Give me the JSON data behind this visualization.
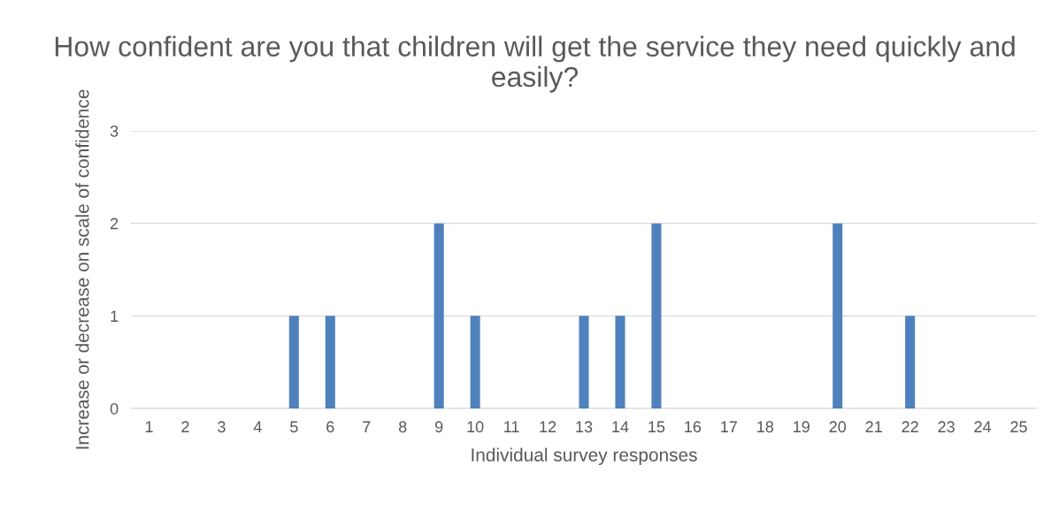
{
  "chart_data": {
    "type": "bar",
    "title": "How confident are you that children will get the service they need quickly and easily?",
    "xlabel": "Individual survey responses",
    "ylabel": "Increase or decrease on scale of confidence",
    "categories": [
      "1",
      "2",
      "3",
      "4",
      "5",
      "6",
      "7",
      "8",
      "9",
      "10",
      "11",
      "12",
      "13",
      "14",
      "15",
      "16",
      "17",
      "18",
      "19",
      "20",
      "21",
      "22",
      "23",
      "24",
      "25"
    ],
    "values": [
      0,
      0,
      0,
      0,
      1,
      1,
      0,
      0,
      2,
      1,
      0,
      0,
      1,
      1,
      2,
      0,
      0,
      0,
      0,
      2,
      0,
      1,
      0,
      0,
      0
    ],
    "color": "#4f81bd",
    "ylim": [
      0,
      3
    ],
    "yticks": [
      0,
      1,
      2,
      3
    ],
    "grid": "y"
  }
}
